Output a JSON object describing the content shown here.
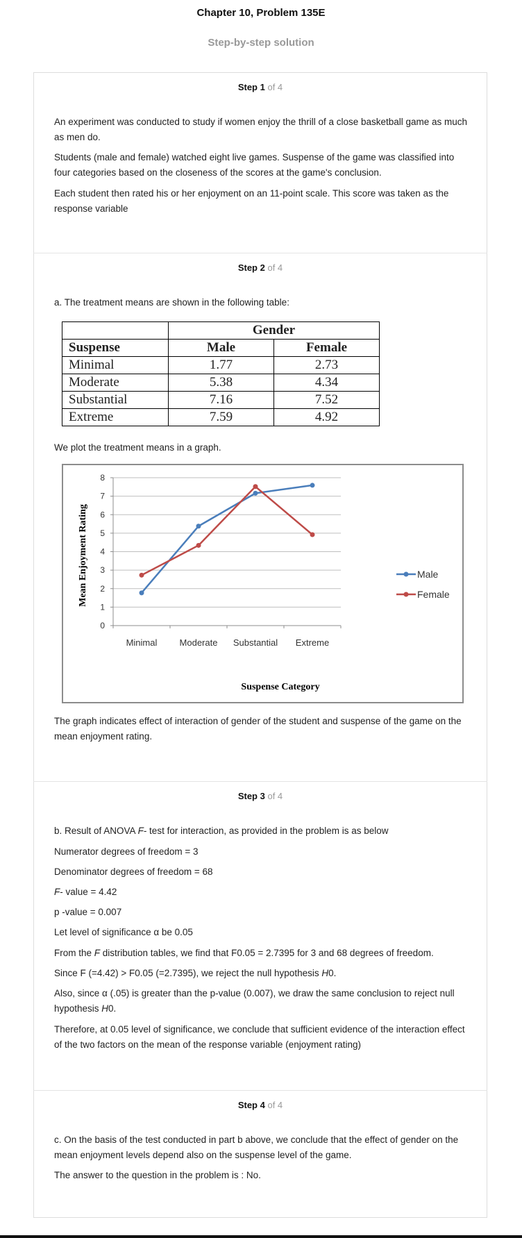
{
  "title": "Chapter 10, Problem 135E",
  "subtitle": "Step-by-step solution",
  "steps": [
    {
      "label": "Step 1",
      "of": "of 4",
      "paragraphs": [
        "An experiment was conducted to study if women enjoy the thrill of a close basketball game as much as men do.",
        "Students (male and female) watched eight live games. Suspense of the game was classified into four categories based on the closeness of the scores at the game's conclusion.",
        "Each student then rated his or her enjoyment on an 11-point scale. This score was taken as the response variable"
      ]
    },
    {
      "label": "Step 2",
      "of": "of 4",
      "intro": "a. The treatment means are shown in the following table:",
      "table": {
        "group_header": "Gender",
        "row_header": "Suspense",
        "columns": [
          "Male",
          "Female"
        ],
        "rows": [
          {
            "label": "Minimal",
            "male": "1.77",
            "female": "2.73"
          },
          {
            "label": "Moderate",
            "male": "5.38",
            "female": "4.34"
          },
          {
            "label": "Substantial",
            "male": "7.16",
            "female": "7.52"
          },
          {
            "label": "Extreme",
            "male": "7.59",
            "female": "4.92"
          }
        ]
      },
      "plot_intro": "We plot the treatment means in a graph.",
      "conclusion": "The graph indicates effect of interaction of gender of the student and suspense of the game on the mean enjoyment rating."
    },
    {
      "label": "Step 3",
      "of": "of 4",
      "lines": {
        "l1_a": "b. Result of ANOVA ",
        "l1_f": "F",
        "l1_b": "- test for interaction, as provided in the problem is as below",
        "l2": "Numerator degrees of freedom = 3",
        "l3": "Denominator degrees of freedom = 68",
        "l4_f": "F",
        "l4_b": "- value = 4.42",
        "l5": "p -value = 0.007",
        "l6": "Let level of significance α be 0.05",
        "l7_a": "From the ",
        "l7_f": "F",
        "l7_b": " distribution tables, we find that F0.05 = 2.7395 for 3 and 68 degrees of freedom.",
        "l8_a": "Since F (=4.42) > F0.05 (=2.7395), we reject the null hypothesis ",
        "l8_h": "H",
        "l8_b": "0.",
        "l9_a": "Also, since α (.05) is greater than the p-value (0.007), we draw the same conclusion to reject null hypothesis ",
        "l9_h": "H",
        "l9_b": "0.",
        "l10": "Therefore, at 0.05 level of significance, we conclude that sufficient evidence of the interaction effect of the two factors on the mean of the response variable (enjoyment rating)"
      }
    },
    {
      "label": "Step 4",
      "of": "of 4",
      "paragraphs": [
        "c. On the basis of the test conducted in part b above, we conclude that the effect of gender on the mean enjoyment levels depend also on the suspense level of the game.",
        "The answer to the question in the problem is : No."
      ]
    }
  ],
  "chart_data": {
    "type": "line",
    "categories": [
      "Minimal",
      "Moderate",
      "Substantial",
      "Extreme"
    ],
    "series": [
      {
        "name": "Male",
        "values": [
          1.77,
          5.38,
          7.16,
          7.59
        ],
        "color": "#4a7ebb"
      },
      {
        "name": "Female",
        "values": [
          2.73,
          4.34,
          7.52,
          4.92
        ],
        "color": "#be4b48"
      }
    ],
    "xlabel": "Suspense Category",
    "ylabel": "Mean Enjoyment Rating",
    "ylim": [
      0,
      8
    ],
    "yticks": [
      "0",
      "1",
      "2",
      "3",
      "4",
      "5",
      "6",
      "7",
      "8"
    ],
    "grid": true,
    "legend": "right"
  }
}
